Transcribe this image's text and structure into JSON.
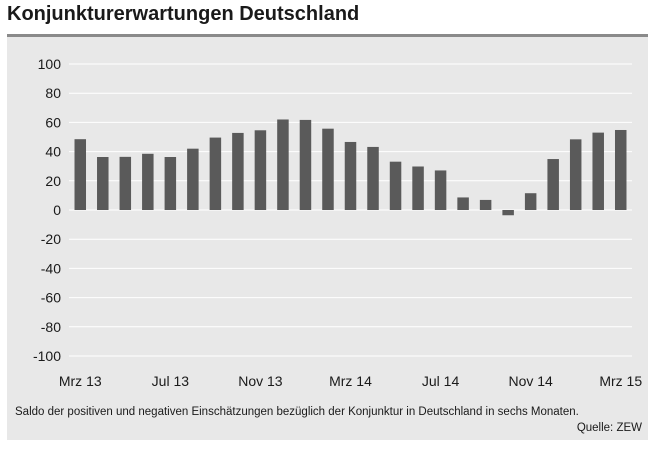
{
  "title": "Konjunkturerwartungen Deutschland",
  "caption": "Saldo der positiven und negativen Einschätzungen bezüglich der Konjunktur in Deutschland in sechs Monaten.",
  "source": "Quelle: ZEW",
  "colors": {
    "bar": "#5a5a5a",
    "background": "#e8e8e8",
    "frame_top": "#8a8a8a",
    "grid": "#ffffff"
  },
  "chart_data": {
    "type": "bar",
    "categories": [
      "Mrz 13",
      "Apr 13",
      "Mai 13",
      "Jun 13",
      "Jul 13",
      "Aug 13",
      "Sep 13",
      "Okt 13",
      "Nov 13",
      "Dez 13",
      "Jan 14",
      "Feb 14",
      "Mrz 14",
      "Apr 14",
      "Mai 14",
      "Jun 14",
      "Jul 14",
      "Aug 14",
      "Sep 14",
      "Okt 14",
      "Nov 14",
      "Dez 14",
      "Jan 15",
      "Feb 15",
      "Mrz 15"
    ],
    "series": [
      {
        "values": [
          48.5,
          36.3,
          36.4,
          38.5,
          36.3,
          42.0,
          49.6,
          52.8,
          54.6,
          62.0,
          61.7,
          55.7,
          46.6,
          43.2,
          33.1,
          29.8,
          27.1,
          8.6,
          6.9,
          -3.6,
          11.5,
          34.9,
          48.4,
          53.0,
          54.8
        ]
      }
    ],
    "x_tick_labels": [
      "Mrz 13",
      "Jul 13",
      "Nov 13",
      "Mrz 14",
      "Jul 14",
      "Nov 14",
      "Mrz 15"
    ],
    "y_tick_labels": [
      "100",
      "80",
      "60",
      "40",
      "20",
      "0",
      "-20",
      "-40",
      "-60",
      "-80",
      "-100"
    ],
    "ylim": [
      -100,
      100
    ],
    "grid": true,
    "title": "Konjunkturerwartungen Deutschland",
    "xlabel": "",
    "ylabel": ""
  }
}
